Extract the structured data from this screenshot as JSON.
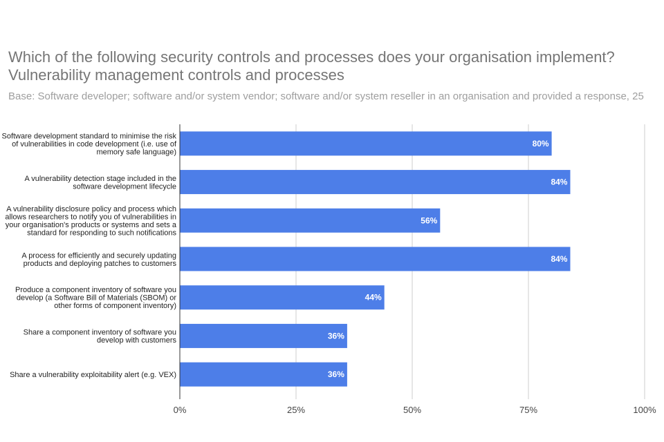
{
  "chart_data": {
    "type": "bar",
    "orientation": "horizontal",
    "title": "Which of the following security controls and processes does your organisation implement?",
    "subtitle_line": "Vulnerability management controls and processes",
    "base": "Base: Software developer; software and/or system vendor; software and/or system reseller in an organisation and provided a response, 25",
    "categories": [
      [
        "Software development standard to minimise the risk",
        "of vulnerabilities in code development (i.e. use of",
        "memory safe language)"
      ],
      [
        "A vulnerability detection stage included in the",
        "software development lifecycle"
      ],
      [
        "A vulnerability disclosure policy and process which",
        "allows researchers to notify you of vulnerabilities in",
        "your organisation's products or systems and sets a",
        "standard for responding to such notifications"
      ],
      [
        "A process for efficiently and securely updating",
        "products and deploying patches to customers"
      ],
      [
        "Produce a component inventory of software you",
        "develop (a Software Bill of Materials (SBOM) or",
        "other forms of component inventory)"
      ],
      [
        "Share a component inventory of software you",
        "develop with customers"
      ],
      [
        "Share a vulnerability exploitability alert (e.g. VEX)"
      ]
    ],
    "values": [
      80,
      84,
      56,
      84,
      44,
      36,
      36
    ],
    "value_labels": [
      "80%",
      "84%",
      "56%",
      "84%",
      "44%",
      "36%",
      "36%"
    ],
    "xlim": [
      0,
      100
    ],
    "x_ticks": [
      0,
      25,
      50,
      75,
      100
    ],
    "x_tick_labels": [
      "0%",
      "25%",
      "50%",
      "75%",
      "100%"
    ],
    "grid": true,
    "legend": "none",
    "bar_color": "#4d7ee8"
  }
}
